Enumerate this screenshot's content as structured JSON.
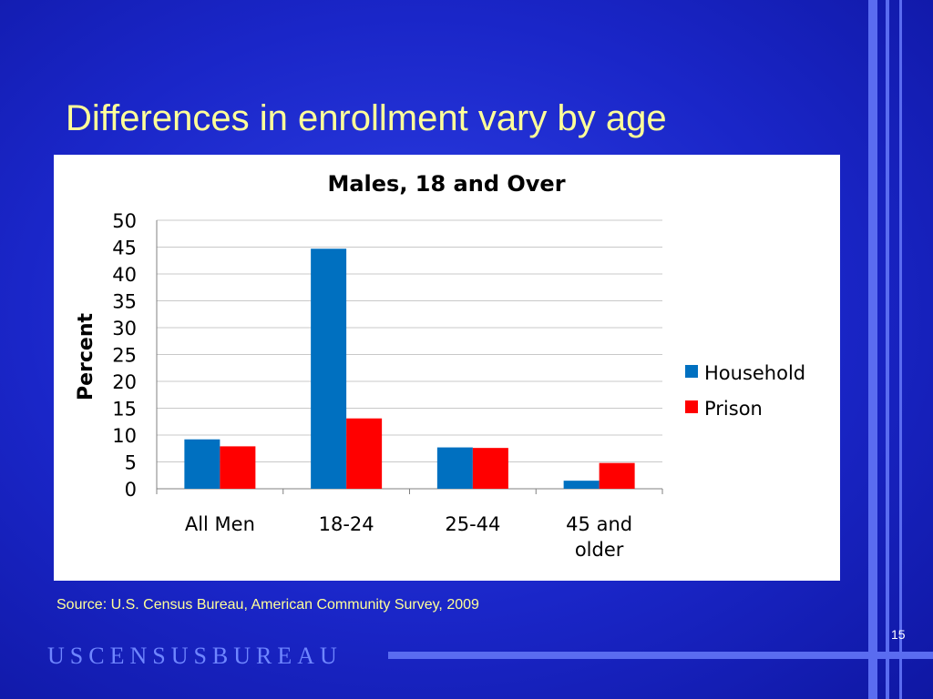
{
  "slide": {
    "title": "Differences in enrollment vary by age",
    "source": "Source: U.S. Census Bureau, American Community Survey, 2009",
    "page_number": "15",
    "logo": "USCENSUSBUREAU",
    "colors": {
      "background": "#1a26c8",
      "title": "#ffff99",
      "frame_lines": "#5a6cf0"
    }
  },
  "chart_data": {
    "type": "bar",
    "title": "Males, 18 and Over",
    "xlabel": "",
    "ylabel": "Percent",
    "categories": [
      "All Men",
      "18-24",
      "25-44",
      "45 and older"
    ],
    "category_lines": [
      [
        "All Men"
      ],
      [
        "18-24"
      ],
      [
        "25-44"
      ],
      [
        "45 and",
        "older"
      ]
    ],
    "series": [
      {
        "name": "Household",
        "color": "#0070c0",
        "values": [
          9.2,
          44.7,
          7.7,
          1.5
        ]
      },
      {
        "name": "Prison",
        "color": "#ff0000",
        "values": [
          7.9,
          13.1,
          7.6,
          4.8
        ]
      }
    ],
    "ylim": [
      0,
      50
    ],
    "yticks": [
      0,
      5,
      10,
      15,
      20,
      25,
      30,
      35,
      40,
      45,
      50
    ],
    "grid": true,
    "legend": "right"
  }
}
